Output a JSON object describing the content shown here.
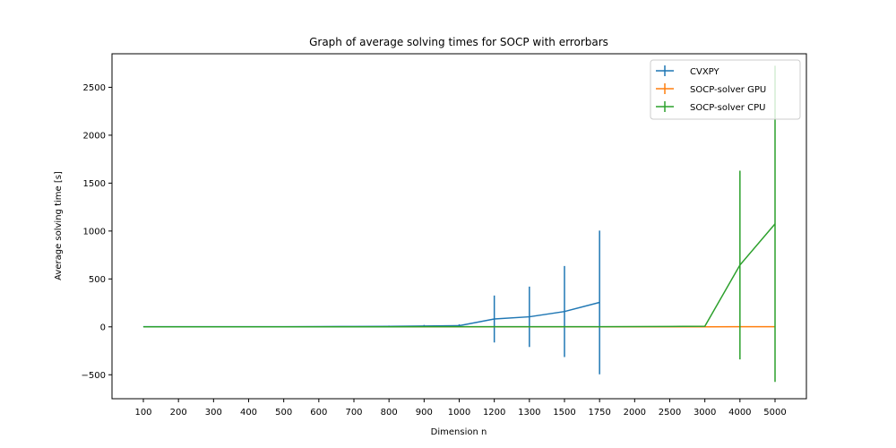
{
  "chart_data": {
    "type": "line",
    "title": "Graph of average solving times for SOCP with errorbars",
    "xlabel": "Dimension n",
    "ylabel": "Average solving time [s]",
    "categories": [
      "100",
      "200",
      "300",
      "400",
      "500",
      "600",
      "700",
      "800",
      "900",
      "1000",
      "1200",
      "1300",
      "1500",
      "1750",
      "2000",
      "2500",
      "3000",
      "4000",
      "5000"
    ],
    "yticks": [
      -500,
      0,
      500,
      1000,
      1500,
      2000,
      2500
    ],
    "ylim": [
      -750,
      2850
    ],
    "grid": false,
    "legend_position": "top-right",
    "series": [
      {
        "name": "CVXPY",
        "color": "#1f77b4",
        "x": [
          "100",
          "200",
          "300",
          "400",
          "500",
          "600",
          "700",
          "800",
          "900",
          "1000",
          "1200",
          "1300",
          "1500",
          "1750"
        ],
        "values": [
          1,
          1,
          1,
          2,
          2,
          3,
          4,
          5,
          8,
          12,
          82,
          105,
          160,
          255
        ],
        "errors": [
          1,
          1,
          1,
          1,
          1,
          2,
          3,
          8,
          12,
          15,
          245,
          315,
          475,
          750
        ]
      },
      {
        "name": "SOCP-solver GPU",
        "color": "#ff7f0e",
        "x": [
          "100",
          "200",
          "300",
          "400",
          "500",
          "600",
          "700",
          "800",
          "900",
          "1000",
          "1200",
          "1300",
          "1500",
          "1750",
          "2000",
          "2500",
          "3000",
          "4000",
          "5000"
        ],
        "values": [
          0,
          0,
          0,
          0,
          0,
          0,
          0,
          0,
          0,
          0,
          0,
          0,
          0,
          0,
          0,
          0,
          0,
          1,
          2
        ],
        "errors": [
          0,
          0,
          0,
          0,
          0,
          0,
          0,
          0,
          0,
          0,
          0,
          0,
          0,
          0,
          0,
          0,
          0,
          1,
          1
        ]
      },
      {
        "name": "SOCP-solver CPU",
        "color": "#2ca02c",
        "x": [
          "100",
          "200",
          "300",
          "400",
          "500",
          "600",
          "700",
          "800",
          "900",
          "1000",
          "1200",
          "1300",
          "1500",
          "1750",
          "2000",
          "2500",
          "3000",
          "4000",
          "5000"
        ],
        "values": [
          0,
          0,
          0,
          0,
          0,
          0,
          0,
          0,
          1,
          1,
          1,
          1,
          2,
          2,
          3,
          4,
          6,
          645,
          1075
        ],
        "errors": [
          0,
          0,
          0,
          0,
          0,
          0,
          0,
          0,
          0,
          0,
          1,
          1,
          1,
          1,
          1,
          2,
          3,
          985,
          1650
        ]
      }
    ]
  }
}
